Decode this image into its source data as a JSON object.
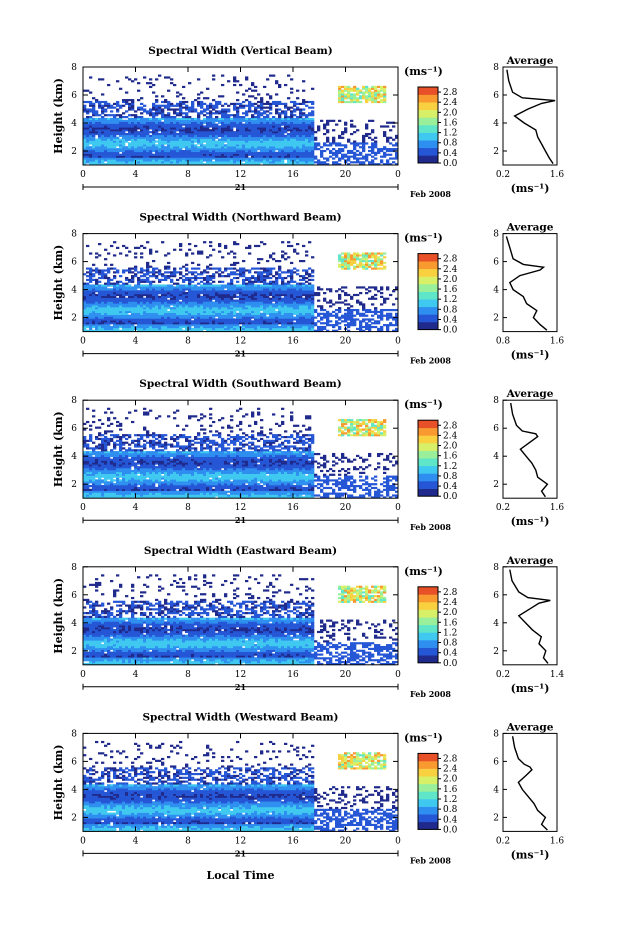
{
  "figure": {
    "xlabel": "Local Time",
    "date_label": "Feb 2008",
    "day_label": "21",
    "profile_title": "Average",
    "colorbar_unit": "(ms⁻¹)",
    "profile_unit": "(ms⁻¹)",
    "colormap": [
      "#1f2a8c",
      "#2456d6",
      "#2f8ff0",
      "#3fc8f0",
      "#5fe6c8",
      "#9af09a",
      "#d8f068",
      "#f8d040",
      "#f89a30",
      "#e85028"
    ]
  },
  "chart_data": [
    {
      "type": "heatmap",
      "title": "Spectral Width (Vertical Beam)",
      "xlabel": "",
      "ylabel": "Height (km)",
      "x_ticks": [
        "0",
        "4",
        "8",
        "12",
        "16",
        "20",
        "0"
      ],
      "xlim": [
        0,
        24
      ],
      "y_ticks": [
        "2",
        "4",
        "6",
        "8"
      ],
      "ylim": [
        1,
        8
      ],
      "colorbar_ticks": [
        "0.0",
        "0.4",
        "0.8",
        "1.2",
        "1.6",
        "2.0",
        "2.4",
        "2.8"
      ],
      "colorbar_range": [
        0,
        3.0
      ],
      "profile": {
        "title": "Average",
        "xlabel": "(ms⁻¹)",
        "x_ticks": [
          "0.2",
          "1.6"
        ],
        "xlim": [
          0.2,
          1.6
        ],
        "y_ticks": [
          "2",
          "4",
          "6",
          "8"
        ],
        "ylim": [
          1,
          8
        ],
        "points": [
          [
            1.5,
            1.1
          ],
          [
            1.4,
            1.5
          ],
          [
            1.3,
            2.0
          ],
          [
            1.2,
            2.5
          ],
          [
            1.1,
            3.0
          ],
          [
            1.05,
            3.5
          ],
          [
            0.75,
            4.0
          ],
          [
            0.5,
            4.5
          ],
          [
            0.85,
            5.0
          ],
          [
            1.2,
            5.4
          ],
          [
            1.55,
            5.6
          ],
          [
            0.7,
            5.8
          ],
          [
            0.45,
            6.2
          ],
          [
            0.35,
            7.0
          ],
          [
            0.3,
            7.8
          ]
        ]
      }
    },
    {
      "type": "heatmap",
      "title": "Spectral Width (Northward Beam)",
      "xlabel": "",
      "ylabel": "Height (km)",
      "x_ticks": [
        "0",
        "4",
        "8",
        "12",
        "16",
        "20",
        "0"
      ],
      "xlim": [
        0,
        24
      ],
      "y_ticks": [
        "2",
        "4",
        "6",
        "8"
      ],
      "ylim": [
        1,
        8
      ],
      "colorbar_ticks": [
        "0.0",
        "0.4",
        "0.8",
        "1.2",
        "1.6",
        "2.0",
        "2.4",
        "2.8"
      ],
      "colorbar_range": [
        0,
        3.0
      ],
      "profile": {
        "title": "Average",
        "xlabel": "(ms⁻¹)",
        "x_ticks": [
          "0.8",
          "1.6"
        ],
        "xlim": [
          0.8,
          1.6
        ],
        "y_ticks": [
          "2",
          "4",
          "6",
          "8"
        ],
        "ylim": [
          1,
          8
        ],
        "points": [
          [
            1.45,
            1.1
          ],
          [
            1.35,
            1.5
          ],
          [
            1.25,
            2.0
          ],
          [
            1.3,
            2.5
          ],
          [
            1.15,
            3.0
          ],
          [
            1.1,
            3.5
          ],
          [
            0.95,
            4.0
          ],
          [
            0.9,
            4.5
          ],
          [
            1.05,
            5.0
          ],
          [
            1.35,
            5.4
          ],
          [
            1.4,
            5.6
          ],
          [
            1.1,
            5.8
          ],
          [
            0.95,
            6.2
          ],
          [
            0.9,
            7.0
          ],
          [
            0.85,
            7.8
          ]
        ]
      }
    },
    {
      "type": "heatmap",
      "title": "Spectral Width (Southward Beam)",
      "xlabel": "",
      "ylabel": "Height (km)",
      "x_ticks": [
        "0",
        "4",
        "8",
        "12",
        "16",
        "20",
        "0"
      ],
      "xlim": [
        0,
        24
      ],
      "y_ticks": [
        "2",
        "4",
        "6",
        "8"
      ],
      "ylim": [
        1,
        8
      ],
      "colorbar_ticks": [
        "0.0",
        "0.4",
        "0.8",
        "1.2",
        "1.6",
        "2.0",
        "2.4",
        "2.8"
      ],
      "colorbar_range": [
        0,
        3.0
      ],
      "profile": {
        "title": "Average",
        "xlabel": "(ms⁻¹)",
        "x_ticks": [
          "0.2",
          "1.6"
        ],
        "xlim": [
          0.2,
          1.6
        ],
        "y_ticks": [
          "2",
          "4",
          "6",
          "8"
        ],
        "ylim": [
          1,
          8
        ],
        "points": [
          [
            1.3,
            1.1
          ],
          [
            1.2,
            1.5
          ],
          [
            1.35,
            2.0
          ],
          [
            1.1,
            2.5
          ],
          [
            1.05,
            3.0
          ],
          [
            0.95,
            3.5
          ],
          [
            0.8,
            4.0
          ],
          [
            0.65,
            4.5
          ],
          [
            0.9,
            5.0
          ],
          [
            1.1,
            5.4
          ],
          [
            1.05,
            5.6
          ],
          [
            0.7,
            5.8
          ],
          [
            0.55,
            6.2
          ],
          [
            0.45,
            7.0
          ],
          [
            0.4,
            7.8
          ]
        ]
      }
    },
    {
      "type": "heatmap",
      "title": "Spectral Width (Eastward Beam)",
      "xlabel": "",
      "ylabel": "Height (km)",
      "x_ticks": [
        "0",
        "4",
        "8",
        "12",
        "16",
        "20",
        "0"
      ],
      "xlim": [
        0,
        24
      ],
      "y_ticks": [
        "2",
        "4",
        "6",
        "8"
      ],
      "ylim": [
        1,
        8
      ],
      "colorbar_ticks": [
        "0.0",
        "0.4",
        "0.8",
        "1.2",
        "1.6",
        "2.0",
        "2.4",
        "2.8"
      ],
      "colorbar_range": [
        0,
        3.0
      ],
      "profile": {
        "title": "Average",
        "xlabel": "(ms⁻¹)",
        "x_ticks": [
          "0.2",
          "1.4"
        ],
        "xlim": [
          0.2,
          1.4
        ],
        "y_ticks": [
          "2",
          "4",
          "6",
          "8"
        ],
        "ylim": [
          1,
          8
        ],
        "points": [
          [
            1.2,
            1.1
          ],
          [
            1.1,
            1.5
          ],
          [
            1.15,
            2.0
          ],
          [
            1.0,
            2.5
          ],
          [
            1.05,
            3.0
          ],
          [
            0.85,
            3.5
          ],
          [
            0.7,
            4.0
          ],
          [
            0.55,
            4.5
          ],
          [
            0.8,
            5.0
          ],
          [
            1.0,
            5.4
          ],
          [
            1.25,
            5.6
          ],
          [
            0.75,
            5.8
          ],
          [
            0.55,
            6.2
          ],
          [
            0.4,
            7.0
          ],
          [
            0.35,
            7.8
          ]
        ]
      }
    },
    {
      "type": "heatmap",
      "title": "Spectral Width (Westward Beam)",
      "xlabel": "Local Time",
      "ylabel": "Height (km)",
      "x_ticks": [
        "0",
        "4",
        "8",
        "12",
        "16",
        "20",
        "0"
      ],
      "xlim": [
        0,
        24
      ],
      "y_ticks": [
        "2",
        "4",
        "6",
        "8"
      ],
      "ylim": [
        1,
        8
      ],
      "colorbar_ticks": [
        "0.0",
        "0.4",
        "0.8",
        "1.2",
        "1.6",
        "2.0",
        "2.4",
        "2.8"
      ],
      "colorbar_range": [
        0,
        3.0
      ],
      "profile": {
        "title": "Average",
        "xlabel": "(ms⁻¹)",
        "x_ticks": [
          "0.2",
          "1.6"
        ],
        "xlim": [
          0.2,
          1.6
        ],
        "y_ticks": [
          "2",
          "4",
          "6",
          "8"
        ],
        "ylim": [
          1,
          8
        ],
        "points": [
          [
            1.35,
            1.1
          ],
          [
            1.2,
            1.5
          ],
          [
            1.3,
            2.0
          ],
          [
            1.1,
            2.5
          ],
          [
            1.0,
            3.0
          ],
          [
            0.85,
            3.5
          ],
          [
            0.7,
            4.0
          ],
          [
            0.6,
            4.5
          ],
          [
            0.8,
            5.0
          ],
          [
            0.95,
            5.4
          ],
          [
            0.9,
            5.6
          ],
          [
            0.75,
            5.8
          ],
          [
            0.6,
            6.2
          ],
          [
            0.5,
            7.0
          ],
          [
            0.45,
            7.8
          ]
        ]
      }
    }
  ]
}
